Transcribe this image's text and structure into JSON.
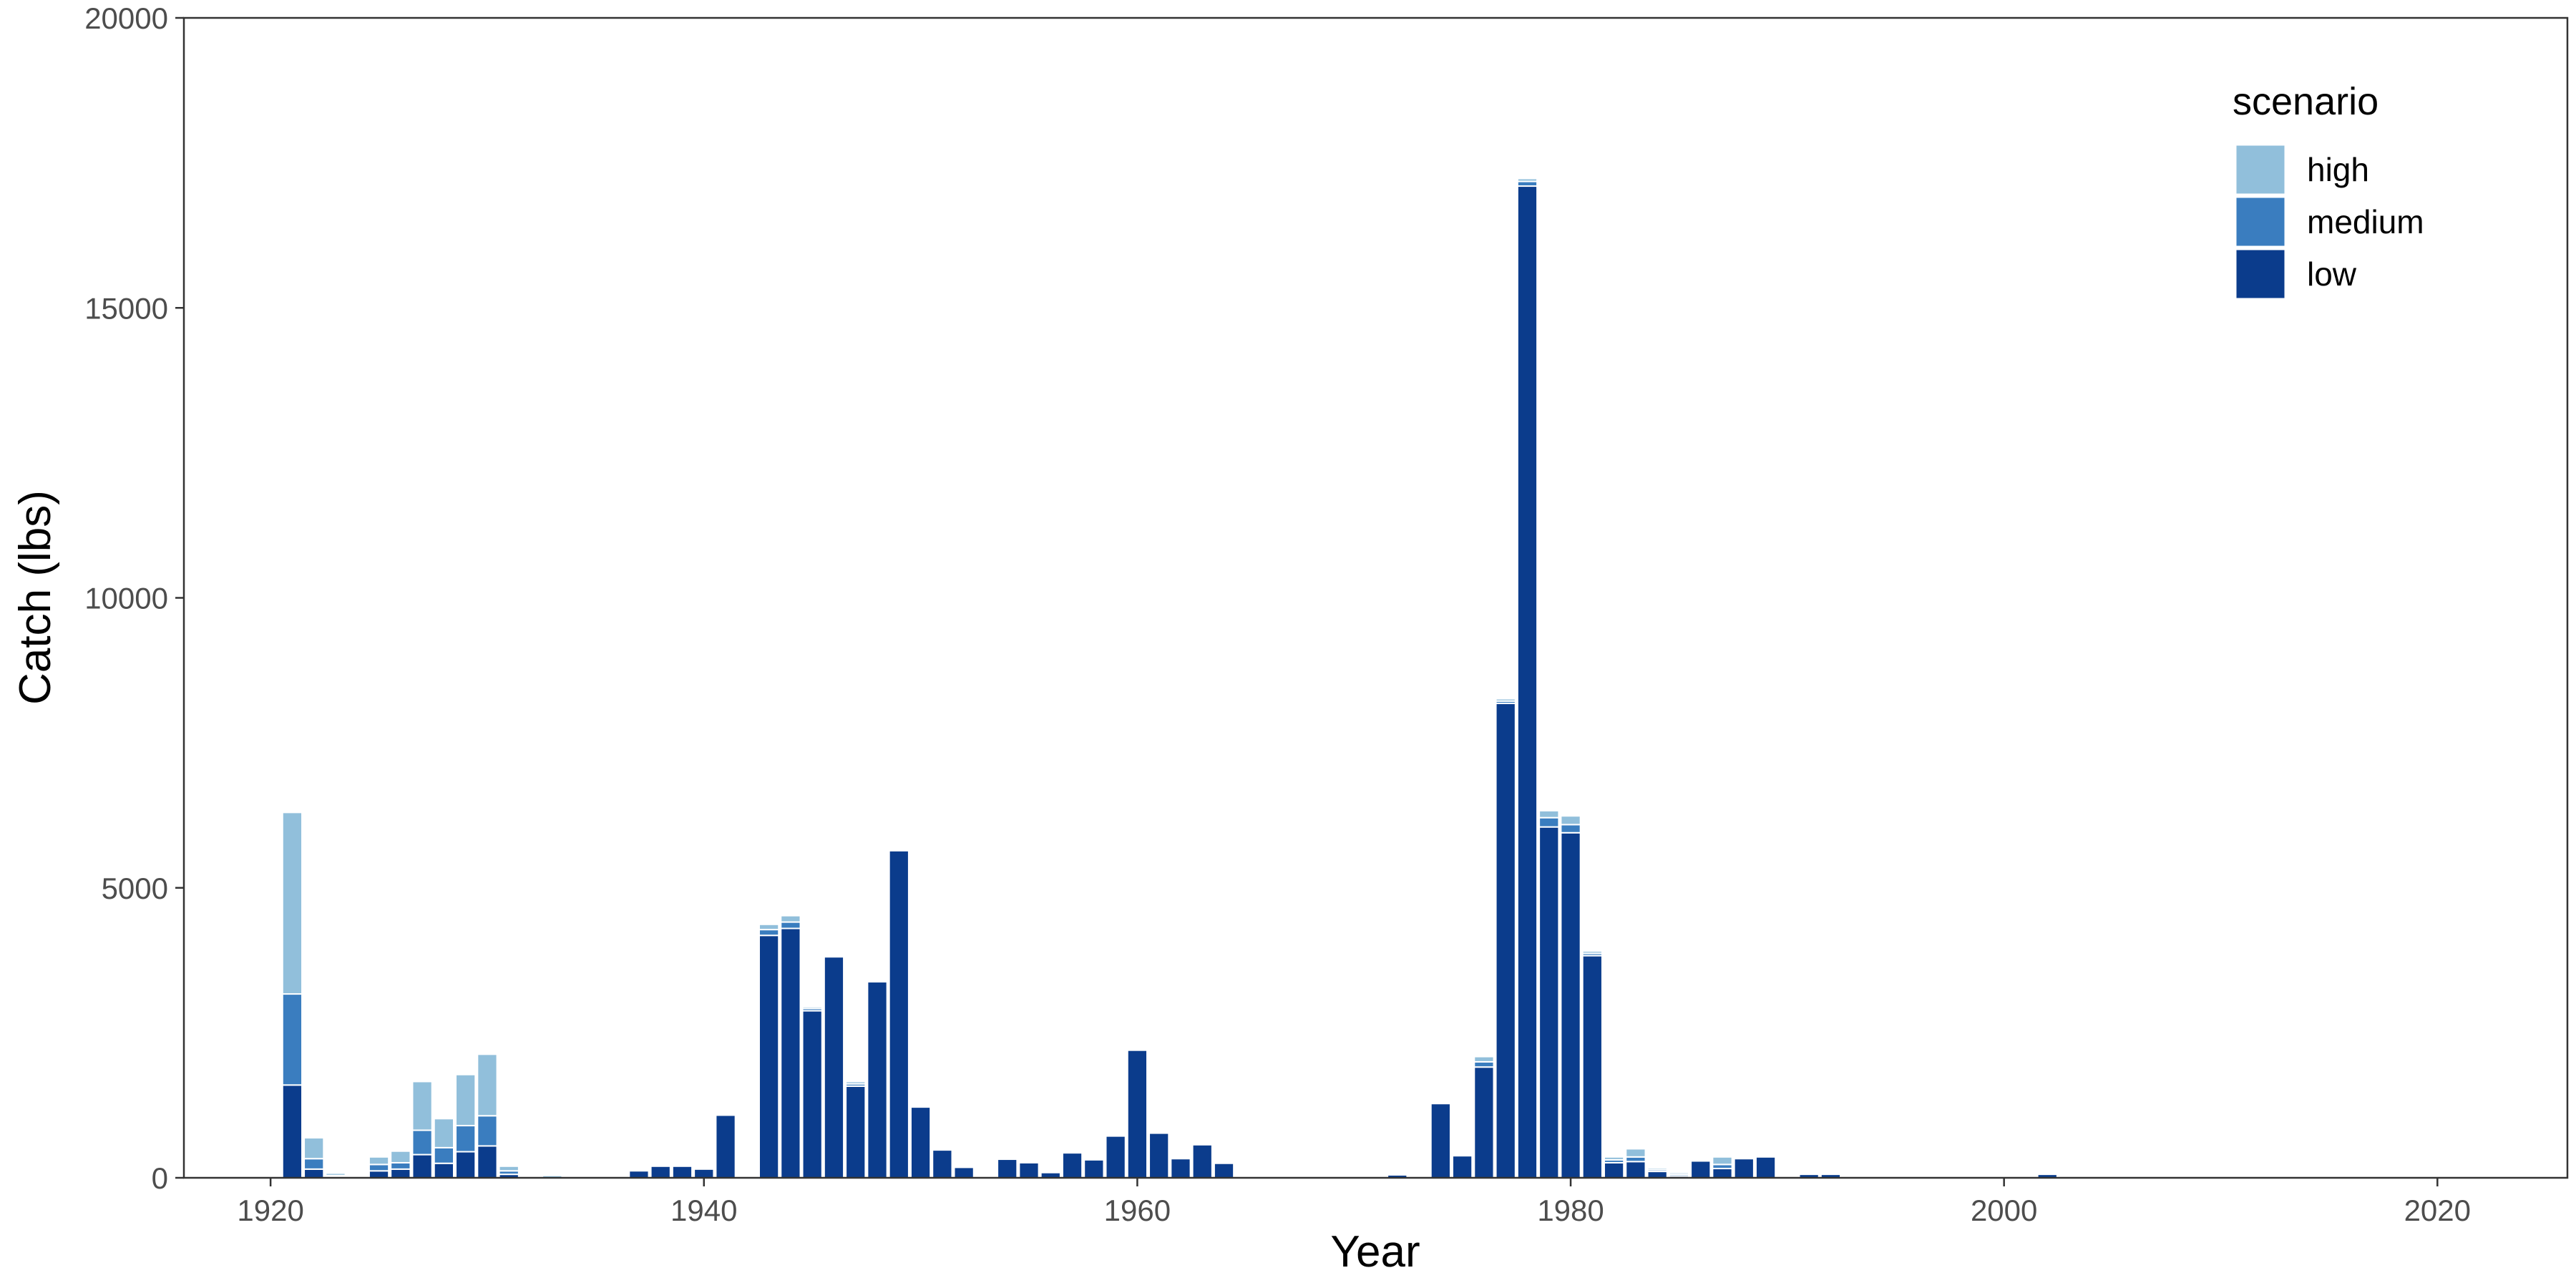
{
  "chart_data": {
    "type": "bar",
    "stacked": true,
    "xlabel": "Year",
    "ylabel": "Catch (lbs)",
    "xlim": [
      1916,
      2026
    ],
    "ylim": [
      0,
      20000
    ],
    "x_ticks": [
      1920,
      1940,
      1960,
      1980,
      2000,
      2020
    ],
    "y_ticks": [
      0,
      5000,
      10000,
      15000,
      20000
    ],
    "x_tick_labels": [
      "1920",
      "1940",
      "1960",
      "1980",
      "2000",
      "2020"
    ],
    "y_tick_labels": [
      "0",
      "5000",
      "10000",
      "15000",
      "20000"
    ],
    "grid": false,
    "legend": {
      "title": "scenario",
      "position": "top-right",
      "entries": [
        "high",
        "medium",
        "low"
      ]
    },
    "colors": {
      "high": "#91bfdb",
      "medium": "#3a7dbf",
      "low": "#0b3c8c"
    },
    "x": [
      1921,
      1922,
      1923,
      1925,
      1926,
      1927,
      1928,
      1929,
      1930,
      1931,
      1933,
      1937,
      1938,
      1939,
      1940,
      1941,
      1943,
      1944,
      1945,
      1946,
      1947,
      1948,
      1949,
      1950,
      1951,
      1952,
      1954,
      1955,
      1956,
      1957,
      1958,
      1959,
      1960,
      1961,
      1962,
      1963,
      1964,
      1972,
      1974,
      1975,
      1976,
      1977,
      1978,
      1979,
      1980,
      1981,
      1982,
      1983,
      1984,
      1985,
      1986,
      1987,
      1988,
      1989,
      1991,
      1992,
      1996,
      2002,
      2003
    ],
    "series": [
      {
        "name": "low",
        "values": [
          1600,
          150,
          20,
          120,
          150,
          400,
          250,
          450,
          550,
          60,
          0,
          120,
          200,
          200,
          150,
          1080,
          4180,
          4300,
          2880,
          3810,
          1580,
          3380,
          5640,
          1220,
          480,
          180,
          320,
          260,
          90,
          430,
          310,
          720,
          2200,
          770,
          330,
          570,
          250,
          50,
          1280,
          380,
          1910,
          8180,
          17100,
          6050,
          5950,
          3830,
          260,
          280,
          110,
          30,
          290,
          160,
          330,
          360,
          60,
          60,
          20,
          60,
          20
        ]
      },
      {
        "name": "medium",
        "values": [
          1570,
          180,
          20,
          110,
          110,
          420,
          270,
          450,
          520,
          60,
          0,
          0,
          0,
          0,
          0,
          0,
          100,
          110,
          40,
          0,
          40,
          0,
          0,
          0,
          0,
          0,
          0,
          0,
          0,
          0,
          0,
          0,
          0,
          0,
          0,
          0,
          0,
          0,
          0,
          0,
          90,
          40,
          80,
          160,
          140,
          40,
          50,
          80,
          30,
          30,
          0,
          70,
          0,
          0,
          0,
          0,
          0,
          0,
          0
        ]
      },
      {
        "name": "high",
        "values": [
          3130,
          360,
          40,
          130,
          200,
          840,
          500,
          880,
          1060,
          80,
          40,
          0,
          0,
          0,
          0,
          0,
          90,
          110,
          30,
          0,
          40,
          0,
          0,
          0,
          0,
          0,
          0,
          0,
          0,
          0,
          0,
          0,
          0,
          0,
          0,
          0,
          0,
          0,
          0,
          0,
          90,
          40,
          50,
          120,
          150,
          40,
          50,
          140,
          30,
          30,
          0,
          130,
          0,
          0,
          0,
          0,
          0,
          0,
          0
        ]
      }
    ]
  }
}
